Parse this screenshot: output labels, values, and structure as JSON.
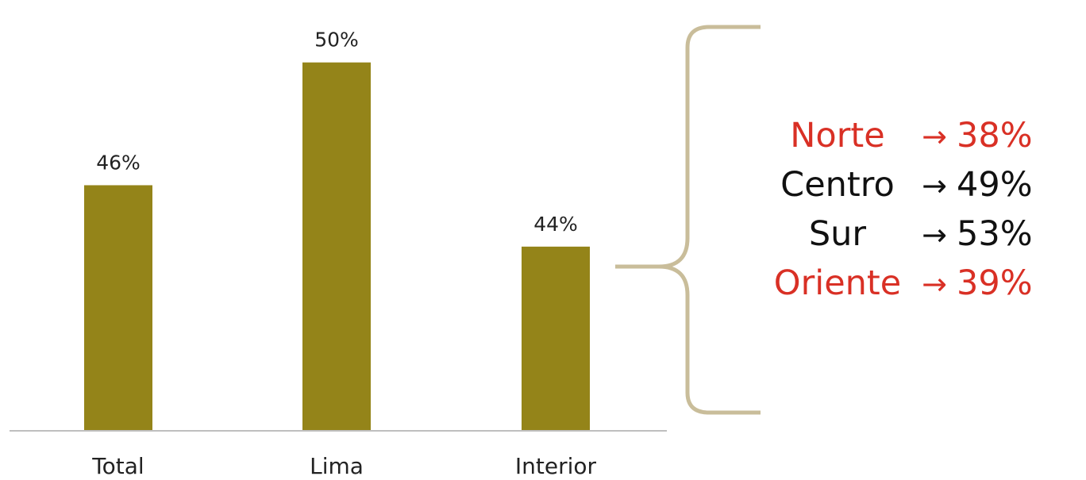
{
  "chart_data": {
    "type": "bar",
    "categories": [
      "Total",
      "Lima",
      "Interior"
    ],
    "values": [
      46,
      50,
      44
    ],
    "data_labels": [
      "46%",
      "50%",
      "44%"
    ],
    "ylim": [
      38,
      51
    ],
    "grid": false,
    "bar_color": "#948419",
    "axis_color": "#bfbfbf"
  },
  "interior_breakdown": {
    "bracket_color": "#c9bd9a",
    "arrow_symbol": "→",
    "regions": [
      {
        "name": "Norte",
        "value": "38%",
        "color": "#d93025"
      },
      {
        "name": "Centro",
        "value": "49%",
        "color": "#111111"
      },
      {
        "name": "Sur",
        "value": "53%",
        "color": "#111111"
      },
      {
        "name": "Oriente",
        "value": "39%",
        "color": "#d93025"
      }
    ]
  }
}
